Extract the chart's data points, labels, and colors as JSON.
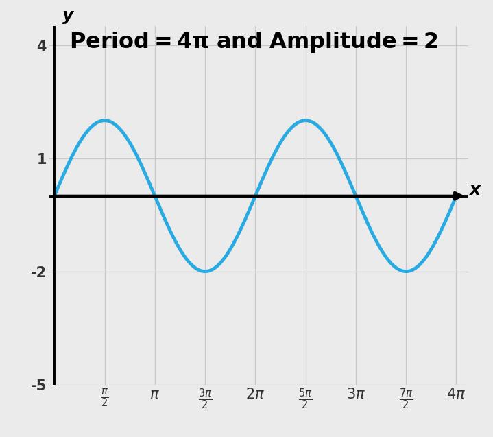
{
  "title": "Period=4π and Amplitude=2",
  "y_label": "y",
  "x_label": "x",
  "amplitude": 2,
  "b": 0.5,
  "xlim": [
    0,
    4
  ],
  "ylim": [
    -5,
    4.5
  ],
  "yticks": [
    -5,
    -2,
    1,
    4
  ],
  "xtick_values": [
    0.5,
    1.0,
    1.5,
    2.0,
    2.5,
    3.0,
    3.5,
    4.0
  ],
  "curve_color": "#29ABE2",
  "curve_linewidth": 3.5,
  "grid_color": "#c8c8c8",
  "background_color": "#ebebeb",
  "title_fontsize": 23,
  "label_fontsize": 18,
  "tick_fontsize": 15
}
